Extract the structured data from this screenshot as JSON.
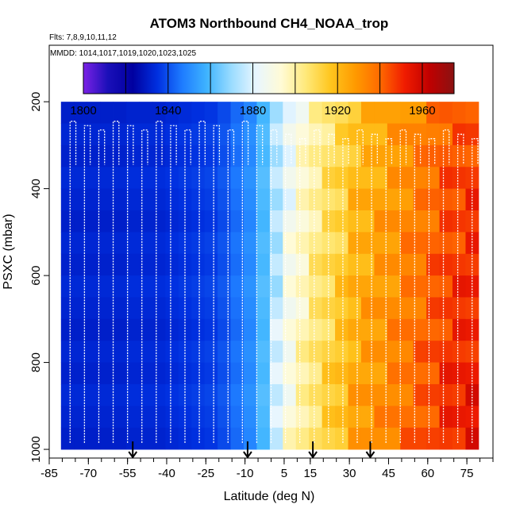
{
  "chart_data": {
    "type": "heatmap",
    "title": "ATOM3 Northbound CH4_NOAA_trop",
    "flights_note": "Flts: 7,8,9,10,11,12",
    "dates_note": "MMDD: 1014,1017,1019,1020,1023,1025",
    "xlabel": "Latitude (deg N)",
    "ylabel": "PSXC (mbar)",
    "xlim": [
      -85,
      85
    ],
    "ylim": [
      1020,
      70
    ],
    "x_ticks": [
      "-85",
      "-70",
      "-55",
      "-40",
      "-25",
      "-10",
      "5",
      "15",
      "30",
      "45",
      "60",
      "75"
    ],
    "x_tick_values": [
      -85,
      -70,
      -55,
      -40,
      -25,
      -10,
      5,
      15,
      30,
      45,
      60,
      75
    ],
    "y_ticks": [
      "200",
      "400",
      "600",
      "800",
      "1000"
    ],
    "y_tick_values": [
      200,
      400,
      600,
      800,
      1000
    ],
    "colorbar": {
      "min": 1800,
      "max": 1975,
      "labels": [
        "1800",
        "1840",
        "1880",
        "1920",
        "1960"
      ],
      "label_values": [
        1800,
        1840,
        1880,
        1920,
        1960
      ],
      "boundaries": [
        1820,
        1840,
        1860,
        1880,
        1900,
        1920,
        1940,
        1960
      ],
      "colors": [
        "#7b22e6",
        "#1a0fb8",
        "#0000a0",
        "#0030e0",
        "#1e7cff",
        "#3fb4ff",
        "#9bdcff",
        "#e8f6ff",
        "#fffbd6",
        "#ffe97a",
        "#ffc61e",
        "#ff9a00",
        "#ff6a00",
        "#f01c00",
        "#c00000",
        "#8a1212"
      ]
    },
    "latitude_bins": [
      -78,
      -73,
      -68,
      -63,
      -58,
      -53,
      -48,
      -43,
      -38,
      -33,
      -28,
      -23,
      -18,
      -13,
      -8,
      -3,
      2,
      7,
      12,
      17,
      22,
      27,
      32,
      37,
      42,
      47,
      52,
      57,
      62,
      67,
      72,
      77
    ],
    "pressure_bins": [
      225,
      275,
      325,
      375,
      425,
      475,
      525,
      575,
      625,
      675,
      725,
      775,
      825,
      875,
      925,
      975
    ],
    "ch4_by_latitude": [
      1832,
      1832,
      1832,
      1832,
      1832,
      1833,
      1833,
      1833,
      1834,
      1835,
      1836,
      1837,
      1840,
      1845,
      1850,
      1860,
      1875,
      1888,
      1896,
      1904,
      1910,
      1915,
      1922,
      1925,
      1928,
      1931,
      1935,
      1938,
      1942,
      1946,
      1948,
      1950
    ],
    "arrows_latitude": [
      -53,
      -9,
      16,
      38
    ]
  }
}
